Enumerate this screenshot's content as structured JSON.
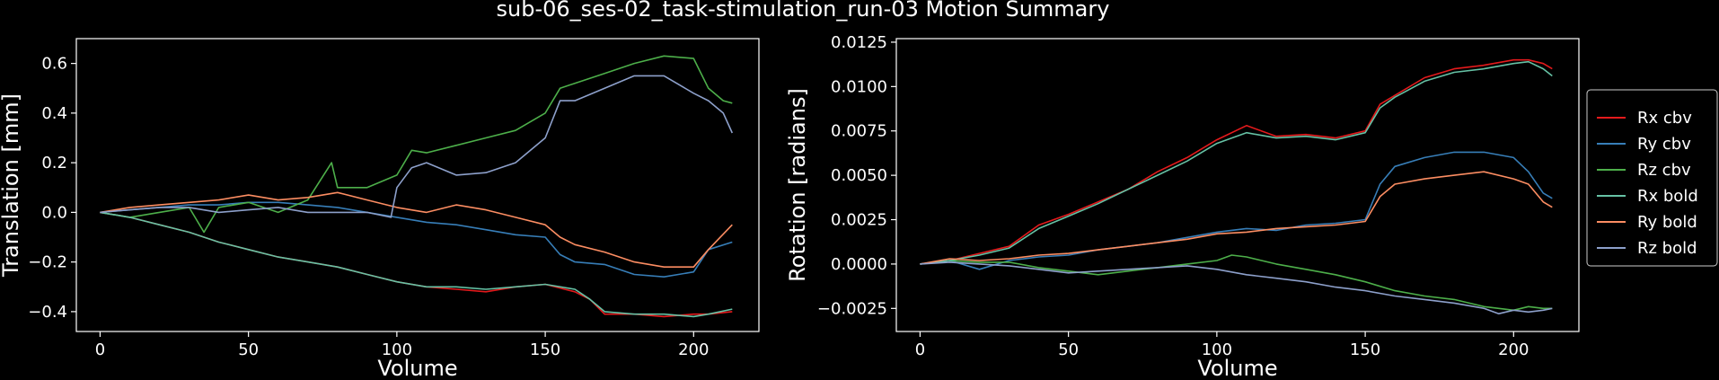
{
  "figure": {
    "title": "sub-06_ses-02_task-stimulation_run-03 Motion Summary",
    "background": "#000000",
    "foreground": "#ffffff"
  },
  "legend": {
    "placement": "right",
    "entries": [
      {
        "label": "Rx cbv",
        "color": "#e41a1c"
      },
      {
        "label": "Ry cbv",
        "color": "#377eb8"
      },
      {
        "label": "Rz cbv",
        "color": "#4daf4a"
      },
      {
        "label": "Rx bold",
        "color": "#66c2a5"
      },
      {
        "label": "Ry bold",
        "color": "#fc8d62"
      },
      {
        "label": "Rz bold",
        "color": "#8da0cb"
      }
    ]
  },
  "chart_data": [
    {
      "type": "line",
      "xlabel": "Volume",
      "ylabel": "Translation [mm]",
      "xlim": [
        -8,
        222
      ],
      "ylim": [
        -0.48,
        0.7
      ],
      "xticks": [
        0,
        50,
        100,
        150,
        200
      ],
      "yticks": [
        -0.4,
        -0.2,
        0.0,
        0.2,
        0.4,
        0.6
      ],
      "ytick_labels": [
        "−0.4",
        "−0.2",
        "0.0",
        "0.2",
        "0.4",
        "0.6"
      ],
      "grid": false,
      "series": [
        {
          "color": "#e41a1c",
          "x": [
            0,
            10,
            20,
            30,
            35,
            40,
            50,
            60,
            70,
            80,
            90,
            100,
            110,
            120,
            130,
            140,
            150,
            160,
            165,
            170,
            180,
            190,
            200,
            205,
            213
          ],
          "y": [
            0,
            -0.02,
            -0.05,
            -0.08,
            -0.1,
            -0.12,
            -0.15,
            -0.18,
            -0.2,
            -0.22,
            -0.25,
            -0.28,
            -0.3,
            -0.31,
            -0.32,
            -0.3,
            -0.29,
            -0.32,
            -0.35,
            -0.41,
            -0.41,
            -0.42,
            -0.41,
            -0.41,
            -0.4
          ]
        },
        {
          "color": "#377eb8",
          "x": [
            0,
            10,
            20,
            30,
            40,
            50,
            60,
            70,
            80,
            90,
            100,
            110,
            120,
            130,
            140,
            150,
            155,
            160,
            170,
            180,
            190,
            200,
            205,
            213
          ],
          "y": [
            0,
            0.01,
            0.02,
            0.03,
            0.03,
            0.04,
            0.04,
            0.03,
            0.02,
            0.0,
            -0.02,
            -0.04,
            -0.05,
            -0.07,
            -0.09,
            -0.1,
            -0.17,
            -0.2,
            -0.21,
            -0.25,
            -0.26,
            -0.24,
            -0.15,
            -0.12
          ]
        },
        {
          "color": "#4daf4a",
          "x": [
            0,
            10,
            20,
            30,
            35,
            40,
            50,
            60,
            70,
            78,
            80,
            90,
            100,
            105,
            110,
            120,
            130,
            140,
            150,
            155,
            160,
            170,
            180,
            190,
            200,
            205,
            210,
            213
          ],
          "y": [
            0,
            -0.02,
            0.0,
            0.02,
            -0.08,
            0.02,
            0.04,
            0.0,
            0.05,
            0.2,
            0.1,
            0.1,
            0.15,
            0.25,
            0.24,
            0.27,
            0.3,
            0.33,
            0.4,
            0.5,
            0.52,
            0.56,
            0.6,
            0.63,
            0.62,
            0.5,
            0.45,
            0.44
          ]
        },
        {
          "color": "#66c2a5",
          "x": [
            0,
            10,
            20,
            30,
            35,
            40,
            50,
            60,
            70,
            80,
            90,
            100,
            110,
            120,
            130,
            140,
            150,
            160,
            165,
            170,
            180,
            190,
            200,
            205,
            213
          ],
          "y": [
            0,
            -0.02,
            -0.05,
            -0.08,
            -0.1,
            -0.12,
            -0.15,
            -0.18,
            -0.2,
            -0.22,
            -0.25,
            -0.28,
            -0.3,
            -0.3,
            -0.31,
            -0.3,
            -0.29,
            -0.31,
            -0.35,
            -0.4,
            -0.41,
            -0.41,
            -0.42,
            -0.41,
            -0.39
          ]
        },
        {
          "color": "#fc8d62",
          "x": [
            0,
            10,
            20,
            30,
            40,
            50,
            60,
            70,
            80,
            90,
            100,
            110,
            120,
            130,
            140,
            150,
            155,
            160,
            170,
            180,
            190,
            200,
            205,
            213
          ],
          "y": [
            0,
            0.02,
            0.03,
            0.04,
            0.05,
            0.07,
            0.05,
            0.06,
            0.08,
            0.05,
            0.02,
            0.0,
            0.03,
            0.01,
            -0.02,
            -0.05,
            -0.1,
            -0.13,
            -0.16,
            -0.2,
            -0.22,
            -0.22,
            -0.15,
            -0.05
          ]
        },
        {
          "color": "#8da0cb",
          "x": [
            0,
            10,
            20,
            30,
            40,
            50,
            60,
            70,
            80,
            90,
            98,
            100,
            105,
            110,
            120,
            130,
            140,
            150,
            155,
            160,
            170,
            180,
            190,
            200,
            205,
            210,
            213
          ],
          "y": [
            0,
            0.01,
            0.02,
            0.02,
            0.0,
            0.01,
            0.02,
            0.0,
            0.0,
            0.0,
            -0.02,
            0.1,
            0.18,
            0.2,
            0.15,
            0.16,
            0.2,
            0.3,
            0.45,
            0.45,
            0.5,
            0.55,
            0.55,
            0.48,
            0.45,
            0.4,
            0.32
          ]
        }
      ]
    },
    {
      "type": "line",
      "xlabel": "Volume",
      "ylabel": "Rotation [radians]",
      "xlim": [
        -8,
        222
      ],
      "ylim": [
        -0.0038,
        0.0127
      ],
      "xticks": [
        0,
        50,
        100,
        150,
        200
      ],
      "yticks": [
        -0.0025,
        0.0,
        0.0025,
        0.005,
        0.0075,
        0.01,
        0.0125
      ],
      "ytick_labels": [
        "−0.0025",
        "0.0000",
        "0.0025",
        "0.0050",
        "0.0075",
        "0.0100",
        "0.0125"
      ],
      "grid": false,
      "series": [
        {
          "color": "#e41a1c",
          "x": [
            0,
            10,
            20,
            30,
            40,
            50,
            60,
            70,
            80,
            90,
            100,
            110,
            120,
            130,
            140,
            150,
            155,
            160,
            170,
            180,
            190,
            200,
            205,
            210,
            213
          ],
          "y": [
            0,
            0.0002,
            0.0006,
            0.001,
            0.0022,
            0.0028,
            0.0035,
            0.0042,
            0.0052,
            0.006,
            0.007,
            0.0078,
            0.0072,
            0.0073,
            0.0071,
            0.0075,
            0.009,
            0.0095,
            0.0105,
            0.011,
            0.0112,
            0.0115,
            0.0115,
            0.0113,
            0.011
          ]
        },
        {
          "color": "#377eb8",
          "x": [
            0,
            10,
            20,
            30,
            40,
            50,
            60,
            70,
            80,
            90,
            100,
            110,
            120,
            130,
            140,
            150,
            155,
            160,
            170,
            180,
            190,
            200,
            205,
            210,
            213
          ],
          "y": [
            0,
            0.0002,
            -0.0003,
            0.0002,
            0.0004,
            0.0005,
            0.0008,
            0.001,
            0.0012,
            0.0015,
            0.0018,
            0.002,
            0.0019,
            0.0022,
            0.0023,
            0.0025,
            0.0045,
            0.0055,
            0.006,
            0.0063,
            0.0063,
            0.006,
            0.0052,
            0.004,
            0.0037
          ]
        },
        {
          "color": "#4daf4a",
          "x": [
            0,
            10,
            20,
            30,
            40,
            50,
            60,
            70,
            80,
            90,
            100,
            105,
            110,
            120,
            130,
            140,
            150,
            160,
            170,
            180,
            190,
            200,
            205,
            210,
            213
          ],
          "y": [
            0,
            0.0002,
            0.0001,
            0.0001,
            -0.0002,
            -0.0004,
            -0.0006,
            -0.0004,
            -0.0002,
            0.0,
            0.0002,
            0.0005,
            0.0004,
            0.0,
            -0.0003,
            -0.0006,
            -0.001,
            -0.0015,
            -0.0018,
            -0.002,
            -0.0024,
            -0.0026,
            -0.0024,
            -0.0025,
            -0.0025
          ]
        },
        {
          "color": "#66c2a5",
          "x": [
            0,
            10,
            20,
            30,
            40,
            50,
            60,
            70,
            80,
            90,
            100,
            110,
            120,
            130,
            140,
            150,
            155,
            160,
            170,
            180,
            190,
            200,
            205,
            210,
            213
          ],
          "y": [
            0,
            0.0002,
            0.0005,
            0.0009,
            0.002,
            0.0027,
            0.0034,
            0.0042,
            0.005,
            0.0058,
            0.0068,
            0.0074,
            0.0071,
            0.0072,
            0.007,
            0.0074,
            0.0088,
            0.0094,
            0.0103,
            0.0108,
            0.011,
            0.0113,
            0.0114,
            0.011,
            0.0106
          ]
        },
        {
          "color": "#fc8d62",
          "x": [
            0,
            10,
            20,
            30,
            40,
            50,
            60,
            70,
            80,
            90,
            100,
            110,
            120,
            130,
            140,
            150,
            155,
            160,
            170,
            180,
            190,
            200,
            205,
            210,
            213
          ],
          "y": [
            0,
            0.0003,
            0.0002,
            0.0003,
            0.0005,
            0.0006,
            0.0008,
            0.001,
            0.0012,
            0.0014,
            0.0017,
            0.0018,
            0.002,
            0.0021,
            0.0022,
            0.0024,
            0.0038,
            0.0045,
            0.0048,
            0.005,
            0.0052,
            0.0048,
            0.0045,
            0.0035,
            0.0032
          ]
        },
        {
          "color": "#8da0cb",
          "x": [
            0,
            10,
            20,
            30,
            40,
            50,
            60,
            70,
            80,
            90,
            100,
            110,
            120,
            130,
            140,
            150,
            160,
            170,
            180,
            190,
            195,
            200,
            205,
            210,
            213
          ],
          "y": [
            0,
            0.0001,
            0.0,
            -0.0001,
            -0.0003,
            -0.0005,
            -0.0004,
            -0.0003,
            -0.0002,
            -0.0001,
            -0.0003,
            -0.0006,
            -0.0008,
            -0.001,
            -0.0013,
            -0.0015,
            -0.0018,
            -0.002,
            -0.0022,
            -0.0025,
            -0.0028,
            -0.0026,
            -0.0027,
            -0.0026,
            -0.0025
          ]
        }
      ]
    }
  ]
}
